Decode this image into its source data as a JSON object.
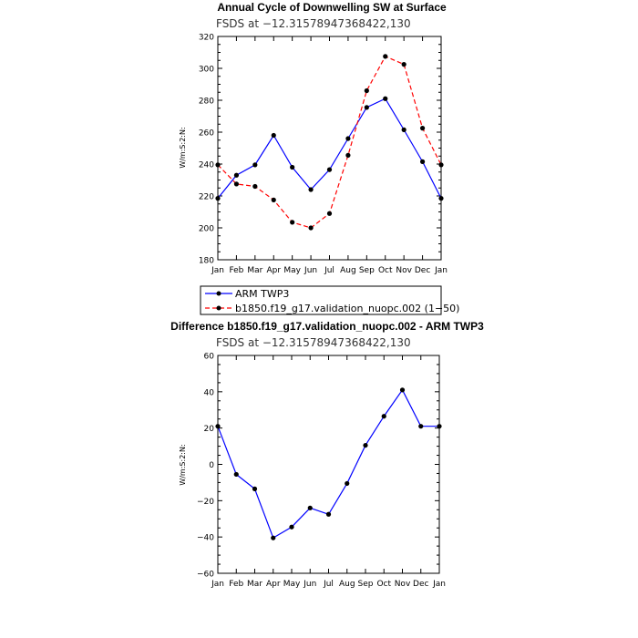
{
  "chart_data": [
    {
      "type": "line",
      "title": "Annual Cycle of Downwelling SW at Surface",
      "subtitle": "FSDS at −12.31578947368422,130",
      "ylabel": "W/m:S:2:N:",
      "ylim": [
        180,
        320
      ],
      "yticks": [
        180,
        200,
        220,
        240,
        260,
        280,
        300,
        320
      ],
      "ytick_labels": [
        "180",
        "200",
        "220",
        "240",
        "260",
        "280",
        "300",
        "320"
      ],
      "categories": [
        "Jan",
        "Feb",
        "Mar",
        "Apr",
        "May",
        "Jun",
        "Jul",
        "Aug",
        "Sep",
        "Oct",
        "Nov",
        "Dec",
        "Jan"
      ],
      "series": [
        {
          "name": "ARM TWP3",
          "color": "#0000ff",
          "dash": "solid",
          "values": [
            218.5,
            233,
            239.5,
            258,
            238,
            224,
            236.5,
            256,
            275.5,
            281,
            261.5,
            241.5,
            218.5
          ]
        },
        {
          "name": "b1850.f19_g17.validation_nuopc.002 (1−50)",
          "color": "#ff0000",
          "dash": "dashed",
          "values": [
            239.5,
            227.5,
            226,
            217.5,
            203.5,
            200,
            209,
            245.5,
            286,
            307.5,
            302.5,
            262.5,
            239.5
          ]
        }
      ],
      "legend": [
        "ARM TWP3",
        "b1850.f19_g17.validation_nuopc.002 (1−50)"
      ]
    },
    {
      "type": "line",
      "title": "Difference b1850.f19_g17.validation_nuopc.002 - ARM TWP3",
      "subtitle": "FSDS at −12.31578947368422,130",
      "ylabel": "W/m:S:2:N:",
      "ylim": [
        -60,
        60
      ],
      "yticks": [
        -60,
        -40,
        -20,
        0,
        20,
        40,
        60
      ],
      "ytick_labels": [
        "−60",
        "−40",
        "−20",
        "0",
        "20",
        "40",
        "60"
      ],
      "categories": [
        "Jan",
        "Feb",
        "Mar",
        "Apr",
        "May",
        "Jun",
        "Jul",
        "Aug",
        "Sep",
        "Oct",
        "Nov",
        "Dec",
        "Jan"
      ],
      "series": [
        {
          "name": "Difference",
          "color": "#0000ff",
          "dash": "solid",
          "values": [
            21,
            -5.5,
            -13.5,
            -40.5,
            -34.5,
            -24,
            -27.5,
            -10.5,
            10.5,
            26.5,
            41,
            21,
            21
          ]
        }
      ]
    }
  ]
}
